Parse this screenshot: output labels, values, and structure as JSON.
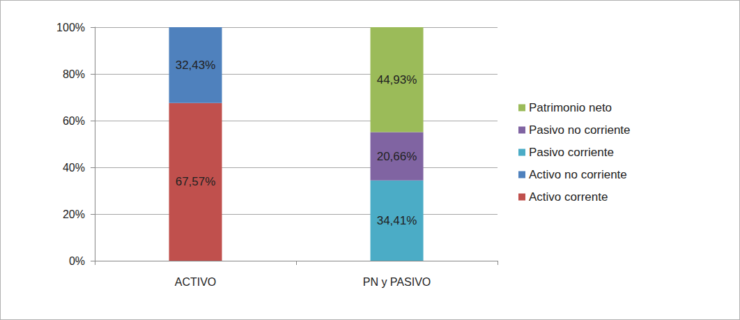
{
  "chart_data": {
    "type": "bar",
    "stacked": true,
    "grid": true,
    "legend": "right",
    "data_labels": true,
    "categories": [
      "ACTIVO",
      "PN y PASIVO"
    ],
    "series": [
      {
        "name": "Activo corrente",
        "color": "#c0504d",
        "values": [
          67.57,
          null
        ],
        "value_labels": [
          "67,57%",
          null
        ]
      },
      {
        "name": "Activo no corriente",
        "color": "#4f81bd",
        "values": [
          32.43,
          null
        ],
        "value_labels": [
          "32,43%",
          null
        ]
      },
      {
        "name": "Pasivo corriente",
        "color": "#4bacc6",
        "values": [
          null,
          34.41
        ],
        "value_labels": [
          null,
          "34,41%"
        ]
      },
      {
        "name": "Pasivo no corriente",
        "color": "#8064a2",
        "values": [
          null,
          20.66
        ],
        "value_labels": [
          null,
          "20,66%"
        ]
      },
      {
        "name": "Patrimonio neto",
        "color": "#9bbb59",
        "values": [
          null,
          44.93
        ],
        "value_labels": [
          null,
          "44,93%"
        ]
      }
    ],
    "ylim": [
      0,
      100
    ],
    "yticks": [
      {
        "value": 0,
        "label": "0%"
      },
      {
        "value": 20,
        "label": "20%"
      },
      {
        "value": 40,
        "label": "40%"
      },
      {
        "value": 60,
        "label": "60%"
      },
      {
        "value": 80,
        "label": "80%"
      },
      {
        "value": 100,
        "label": "100%"
      }
    ]
  }
}
